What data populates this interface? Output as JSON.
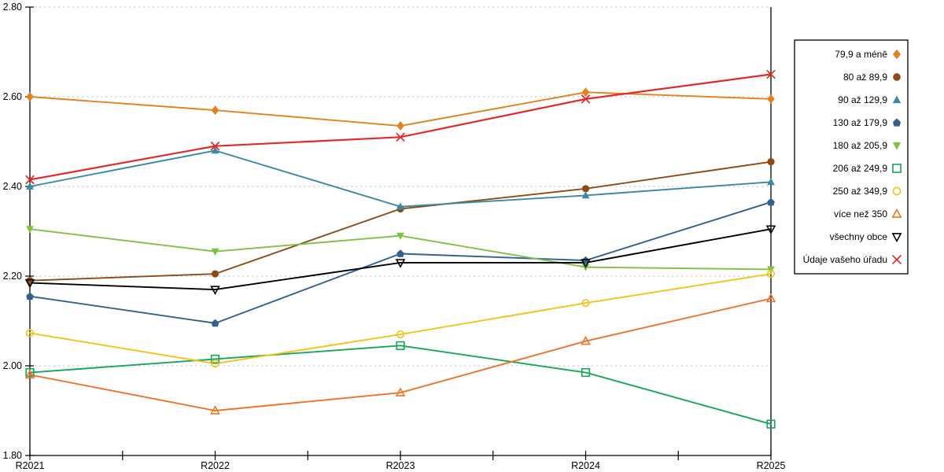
{
  "chart_data": {
    "type": "line",
    "categories": [
      "R2021",
      "R2022",
      "R2023",
      "R2024",
      "R2025"
    ],
    "title": "",
    "xlabel": "",
    "ylabel": "",
    "ylim": [
      1.8,
      2.8
    ],
    "ytick_step": 0.2,
    "ytick_labels": [
      "1.80",
      "2.00",
      "2.20",
      "2.40",
      "2.60",
      "2.80"
    ],
    "grid": "horizontal-dashed",
    "grid_color": "#c6c6c6",
    "axis_color": "#000000",
    "legend_position": "right-outside",
    "legend_border_color": "#000000",
    "series": [
      {
        "name": "79,9 a méně",
        "color": "#e4811e",
        "marker": "diamond",
        "marker_filled": true,
        "values": [
          2.6,
          2.57,
          2.535,
          2.61,
          2.595
        ]
      },
      {
        "name": "80 až 89,9",
        "color": "#8c4a17",
        "marker": "circle",
        "marker_filled": true,
        "values": [
          2.19,
          2.205,
          2.35,
          2.395,
          2.455
        ]
      },
      {
        "name": "90 až 129,9",
        "color": "#3a89a5",
        "marker": "triangle-up",
        "marker_filled": true,
        "values": [
          2.4,
          2.48,
          2.355,
          2.38,
          2.41
        ]
      },
      {
        "name": "130 až 179,9",
        "color": "#33608c",
        "marker": "pentagon",
        "marker_filled": true,
        "values": [
          2.155,
          2.095,
          2.25,
          2.235,
          2.365
        ]
      },
      {
        "name": "180 až 205,9",
        "color": "#7ec242",
        "marker": "triangle-down",
        "marker_filled": true,
        "values": [
          2.305,
          2.255,
          2.29,
          2.22,
          2.215
        ]
      },
      {
        "name": "206 až 249,9",
        "color": "#17a65c",
        "marker": "square",
        "marker_filled": false,
        "values": [
          1.985,
          2.015,
          2.045,
          1.985,
          1.87
        ]
      },
      {
        "name": "250 až 349,9",
        "color": "#f2c318",
        "marker": "circle",
        "marker_filled": false,
        "values": [
          2.073,
          2.005,
          2.07,
          2.14,
          2.205
        ]
      },
      {
        "name": "více než 350",
        "color": "#ee7428",
        "marker": "triangle-up",
        "marker_filled": false,
        "values": [
          1.98,
          1.9,
          1.94,
          2.055,
          2.15
        ]
      },
      {
        "name": "všechny obce",
        "color": "#000000",
        "marker": "triangle-down",
        "marker_filled": false,
        "values": [
          2.185,
          2.17,
          2.23,
          2.23,
          2.305
        ]
      },
      {
        "name": "Údaje vašeho úřadu",
        "color": "#e02b2b",
        "marker": "x",
        "marker_filled": false,
        "values": [
          2.415,
          2.49,
          2.51,
          2.595,
          2.65
        ]
      }
    ]
  }
}
